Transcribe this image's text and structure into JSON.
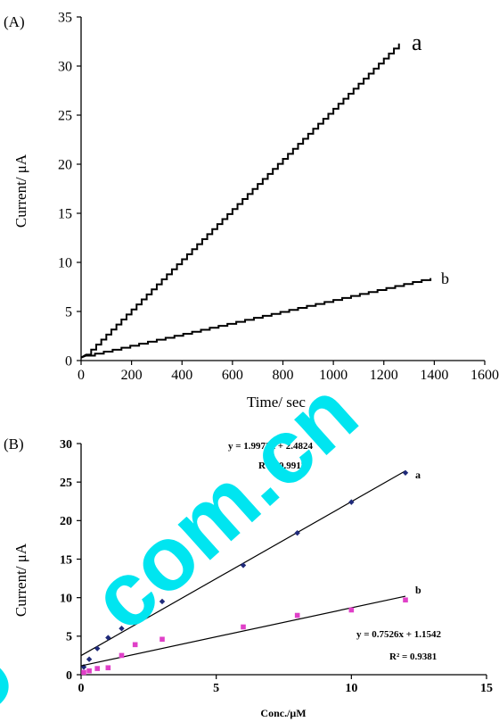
{
  "colors": {
    "axis": "#000000",
    "series_a_points_B": "#1f2a7a",
    "series_b_points_B": "#e040c8",
    "watermark": "#00e5f0"
  },
  "watermark": {
    "text": "com.cn",
    "partial_left": "o"
  },
  "chart_data": [
    {
      "type": "line",
      "panel_label": "(A)",
      "xlabel": "Time/ sec",
      "ylabel": "Current/ μA",
      "xlim": [
        0,
        1600
      ],
      "ylim": [
        0,
        35
      ],
      "xticks": [
        0,
        200,
        400,
        600,
        800,
        1000,
        1200,
        1400,
        1600
      ],
      "yticks": [
        0,
        5,
        10,
        15,
        20,
        25,
        30,
        35
      ],
      "grid": false,
      "series": [
        {
          "name": "a",
          "step_x_interval": 20,
          "x_start": 20,
          "x_end": 1260,
          "y_start": 0.6,
          "y_end": 32.3
        },
        {
          "name": "b",
          "step_x_interval": 35,
          "x_start": 20,
          "x_end": 1400,
          "y_start": 0.5,
          "y_end": 8.4
        }
      ]
    },
    {
      "type": "scatter",
      "panel_label": "(B)",
      "xlabel": "Conc./μM",
      "ylabel": "Current/ μA",
      "xlim": [
        0,
        15
      ],
      "ylim": [
        0,
        30
      ],
      "xticks": [
        0,
        5,
        10,
        15
      ],
      "yticks": [
        0,
        5,
        10,
        15,
        20,
        25,
        30
      ],
      "grid": false,
      "series": [
        {
          "name": "a",
          "x": [
            0.1,
            0.3,
            0.6,
            1.0,
            1.5,
            2.0,
            3.0,
            6.0,
            8.0,
            10.0,
            12.0
          ],
          "y": [
            1.0,
            2.0,
            3.4,
            4.8,
            6.0,
            7.1,
            9.5,
            14.2,
            18.4,
            22.4,
            26.2
          ],
          "fit": {
            "slope": 1.9972,
            "intercept": 2.4824,
            "x_range": [
              0,
              12
            ]
          },
          "equation": "y = 1.9972x + 2.4824",
          "r2": "R² = 0.9917"
        },
        {
          "name": "b",
          "x": [
            0.1,
            0.3,
            0.6,
            1.0,
            1.5,
            2.0,
            3.0,
            6.0,
            8.0,
            10.0,
            12.0
          ],
          "y": [
            0.3,
            0.5,
            0.8,
            0.9,
            2.5,
            3.9,
            4.6,
            6.2,
            7.7,
            8.4,
            9.7
          ],
          "fit": {
            "slope": 0.7526,
            "intercept": 1.1542,
            "x_range": [
              0,
              12
            ]
          },
          "equation": "y = 0.7526x + 1.1542",
          "r2": "R² = 0.9381"
        }
      ]
    }
  ]
}
